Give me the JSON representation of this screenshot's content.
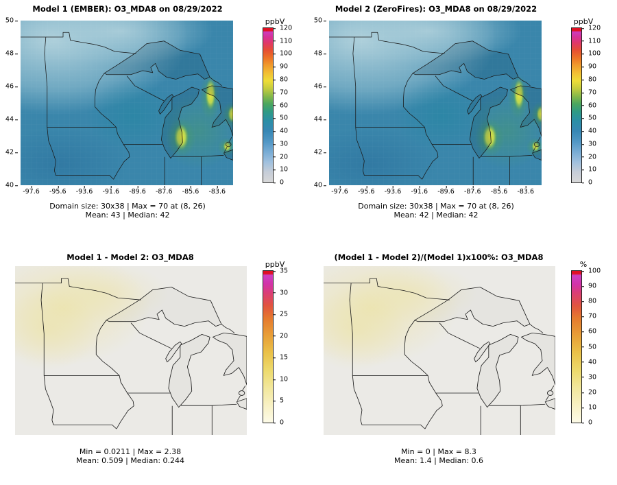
{
  "colors": {
    "top-base": "#3a86ab",
    "diff-base": "#ebeae6"
  },
  "chart_data": [
    {
      "type": "heatmap",
      "title": "Model 1 (EMBER): O3_MDA8 on 08/29/2022",
      "variable": "O3_MDA8",
      "date": "08/29/2022",
      "units": "ppbV",
      "x_axis": {
        "min": -98.4,
        "max": -82.4,
        "ticks": [
          -97.6,
          -95.6,
          -93.6,
          -91.6,
          -89.6,
          -87.6,
          -85.6,
          -83.6
        ]
      },
      "y_axis": {
        "min": 40,
        "max": 50,
        "ticks": [
          40,
          42,
          44,
          46,
          48,
          50
        ]
      },
      "colorbar": {
        "label": "ppbV",
        "min": 0,
        "max": 120,
        "ticks": [
          0,
          10,
          20,
          30,
          40,
          50,
          60,
          70,
          80,
          90,
          100,
          110,
          120
        ],
        "palette": [
          {
            "v": 0,
            "c": "#d8d8d8"
          },
          {
            "v": 8,
            "c": "#c6cdd8"
          },
          {
            "v": 16,
            "c": "#9fc0de"
          },
          {
            "v": 24,
            "c": "#77abd4"
          },
          {
            "v": 32,
            "c": "#5096c4"
          },
          {
            "v": 40,
            "c": "#3787b4"
          },
          {
            "v": 48,
            "c": "#2b8fa6"
          },
          {
            "v": 55,
            "c": "#2f9a85"
          },
          {
            "v": 61,
            "c": "#4aa65f"
          },
          {
            "v": 67,
            "c": "#85b84a"
          },
          {
            "v": 73,
            "c": "#c4cc3e"
          },
          {
            "v": 79,
            "c": "#eedd38"
          },
          {
            "v": 85,
            "c": "#f2bf33"
          },
          {
            "v": 91,
            "c": "#f09c2c"
          },
          {
            "v": 97,
            "c": "#ec7226"
          },
          {
            "v": 103,
            "c": "#e54e33"
          },
          {
            "v": 108,
            "c": "#e03a64"
          },
          {
            "v": 113,
            "c": "#d73196"
          },
          {
            "v": 117,
            "c": "#cb3cbd"
          },
          {
            "v": 118,
            "c": "#e01023"
          },
          {
            "v": 120,
            "c": "#e01023"
          }
        ]
      },
      "stats": {
        "domain_size": "30x38",
        "max": 70,
        "max_at": "(8, 26)",
        "mean": 43,
        "median": 42
      },
      "stats_line1": "Domain size: 30x38 | Max = 70 at (8, 26)",
      "stats_line2": "Mean: 43 | Median: 42"
    },
    {
      "type": "heatmap",
      "title": "Model 2 (ZeroFires): O3_MDA8 on 08/29/2022",
      "variable": "O3_MDA8",
      "date": "08/29/2022",
      "units": "ppbV",
      "x_axis": {
        "min": -98.4,
        "max": -82.4,
        "ticks": [
          -97.6,
          -95.6,
          -93.6,
          -91.6,
          -89.6,
          -87.6,
          -85.6,
          -83.6
        ]
      },
      "y_axis": {
        "min": 40,
        "max": 50,
        "ticks": [
          40,
          42,
          44,
          46,
          48,
          50
        ]
      },
      "colorbar": {
        "label": "ppbV",
        "min": 0,
        "max": 120,
        "ticks": [
          0,
          10,
          20,
          30,
          40,
          50,
          60,
          70,
          80,
          90,
          100,
          110,
          120
        ],
        "palette": [
          {
            "v": 0,
            "c": "#d8d8d8"
          },
          {
            "v": 8,
            "c": "#c6cdd8"
          },
          {
            "v": 16,
            "c": "#9fc0de"
          },
          {
            "v": 24,
            "c": "#77abd4"
          },
          {
            "v": 32,
            "c": "#5096c4"
          },
          {
            "v": 40,
            "c": "#3787b4"
          },
          {
            "v": 48,
            "c": "#2b8fa6"
          },
          {
            "v": 55,
            "c": "#2f9a85"
          },
          {
            "v": 61,
            "c": "#4aa65f"
          },
          {
            "v": 67,
            "c": "#85b84a"
          },
          {
            "v": 73,
            "c": "#c4cc3e"
          },
          {
            "v": 79,
            "c": "#eedd38"
          },
          {
            "v": 85,
            "c": "#f2bf33"
          },
          {
            "v": 91,
            "c": "#f09c2c"
          },
          {
            "v": 97,
            "c": "#ec7226"
          },
          {
            "v": 103,
            "c": "#e54e33"
          },
          {
            "v": 108,
            "c": "#e03a64"
          },
          {
            "v": 113,
            "c": "#d73196"
          },
          {
            "v": 117,
            "c": "#cb3cbd"
          },
          {
            "v": 118,
            "c": "#e01023"
          },
          {
            "v": 120,
            "c": "#e01023"
          }
        ]
      },
      "stats": {
        "domain_size": "30x38",
        "max": 70,
        "max_at": "(8, 26)",
        "mean": 42,
        "median": 42
      },
      "stats_line1": "Domain size: 30x38 | Max = 70 at (8, 26)",
      "stats_line2": "Mean: 42 | Median: 42"
    },
    {
      "type": "heatmap",
      "title": "Model 1 - Model 2: O3_MDA8",
      "variable": "O3_MDA8",
      "units": "ppbV",
      "colorbar": {
        "label": "ppbV",
        "min": 0,
        "max": 35,
        "ticks": [
          0,
          5,
          10,
          15,
          20,
          25,
          30,
          35
        ],
        "palette": [
          {
            "v": 0,
            "c": "#fdfbe8"
          },
          {
            "v": 4,
            "c": "#f8f1c4"
          },
          {
            "v": 8,
            "c": "#f2e79c"
          },
          {
            "v": 12,
            "c": "#edda6d"
          },
          {
            "v": 16,
            "c": "#eac249"
          },
          {
            "v": 20,
            "c": "#e8a038"
          },
          {
            "v": 24,
            "c": "#e57a2e"
          },
          {
            "v": 27,
            "c": "#e1543f"
          },
          {
            "v": 30,
            "c": "#da3d78"
          },
          {
            "v": 32,
            "c": "#d233a8"
          },
          {
            "v": 34,
            "c": "#cc40c2"
          },
          {
            "v": 34.4,
            "c": "#e01023"
          },
          {
            "v": 35,
            "c": "#e01023"
          }
        ]
      },
      "stats": {
        "min": 0.0211,
        "max": 2.38,
        "mean": 0.509,
        "median": 0.244
      },
      "stats_line1": "Min = 0.0211 | Max = 2.38",
      "stats_line2": "Mean: 0.509 | Median: 0.244"
    },
    {
      "type": "heatmap",
      "title": "(Model 1 - Model 2)/(Model 1)x100%: O3_MDA8",
      "variable": "O3_MDA8",
      "units": "%",
      "colorbar": {
        "label": "%",
        "min": 0,
        "max": 100,
        "ticks": [
          0,
          10,
          20,
          30,
          40,
          50,
          60,
          70,
          80,
          90,
          100
        ],
        "palette": [
          {
            "v": 0,
            "c": "#fdfbe8"
          },
          {
            "v": 11,
            "c": "#f8f1c4"
          },
          {
            "v": 23,
            "c": "#f2e79c"
          },
          {
            "v": 34,
            "c": "#edda6d"
          },
          {
            "v": 46,
            "c": "#eac249"
          },
          {
            "v": 57,
            "c": "#e8a038"
          },
          {
            "v": 69,
            "c": "#e57a2e"
          },
          {
            "v": 77,
            "c": "#e1543f"
          },
          {
            "v": 86,
            "c": "#da3d78"
          },
          {
            "v": 91,
            "c": "#d233a8"
          },
          {
            "v": 97,
            "c": "#cc40c2"
          },
          {
            "v": 98.3,
            "c": "#e01023"
          },
          {
            "v": 100,
            "c": "#e01023"
          }
        ]
      },
      "stats": {
        "min": 0,
        "max": 8.3,
        "mean": 1.4,
        "median": 0.6
      },
      "stats_line1": "Min = 0 | Max = 8.3",
      "stats_line2": "Mean: 1.4 | Median: 0.6"
    }
  ]
}
